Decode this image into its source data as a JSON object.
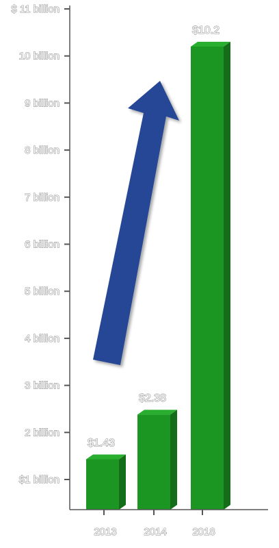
{
  "chart_data": {
    "type": "bar",
    "categories": [
      "2013",
      "2014",
      "2018"
    ],
    "values": [
      1.43,
      2.38,
      10.2
    ],
    "data_labels": [
      "$1.43",
      "$2.38",
      "$10.2"
    ],
    "ylim": [
      0,
      11
    ],
    "y_ticks": [
      {
        "value": 1,
        "label": "$1 billion"
      },
      {
        "value": 2,
        "label": "2 billion"
      },
      {
        "value": 3,
        "label": "3 billion"
      },
      {
        "value": 4,
        "label": "4 billion"
      },
      {
        "value": 5,
        "label": "5 billion"
      },
      {
        "value": 6,
        "label": "6 billion"
      },
      {
        "value": 7,
        "label": "7 billion"
      },
      {
        "value": 8,
        "label": "8 billion"
      },
      {
        "value": 9,
        "label": "9 billion"
      },
      {
        "value": 10,
        "label": "10 billion"
      },
      {
        "value": 11,
        "label": "$ 11 billion"
      }
    ],
    "grid": false,
    "bar_style": "3d",
    "annotation": "upward-trend-arrow",
    "colors": {
      "bar_front": "#1c9622",
      "bar_top": "#2aae2f",
      "bar_side": "#146d18",
      "arrow": "#264796",
      "axis": "#555555"
    }
  }
}
